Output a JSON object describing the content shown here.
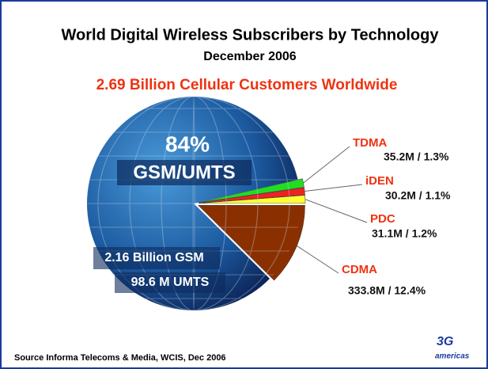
{
  "chart_data": {
    "type": "pie",
    "title": "World Digital Wireless Subscribers by Technology",
    "subtitle": "December 2006",
    "headline": "2.69 Billion Cellular Customers Worldwide",
    "categories": [
      "GSM/UMTS",
      "TDMA",
      "iDEN",
      "PDC",
      "CDMA"
    ],
    "values": [
      84,
      1.3,
      1.1,
      1.2,
      12.4
    ],
    "value_labels": [
      "84%",
      "35.2M / 1.3%",
      "30.2M / 1.1%",
      "31.1M / 1.2%",
      "333.8M / 12.4%"
    ],
    "colors": [
      "#1c5aa0",
      "#22dd22",
      "#ee2222",
      "#ffff33",
      "#8a3000"
    ],
    "annotations": [
      "2.16 Billion GSM",
      "98.6 M UMTS"
    ],
    "source": "Source Informa Telecoms & Media, WCIS, Dec 2006"
  },
  "logo": {
    "mark": "3G",
    "text": "americas"
  }
}
